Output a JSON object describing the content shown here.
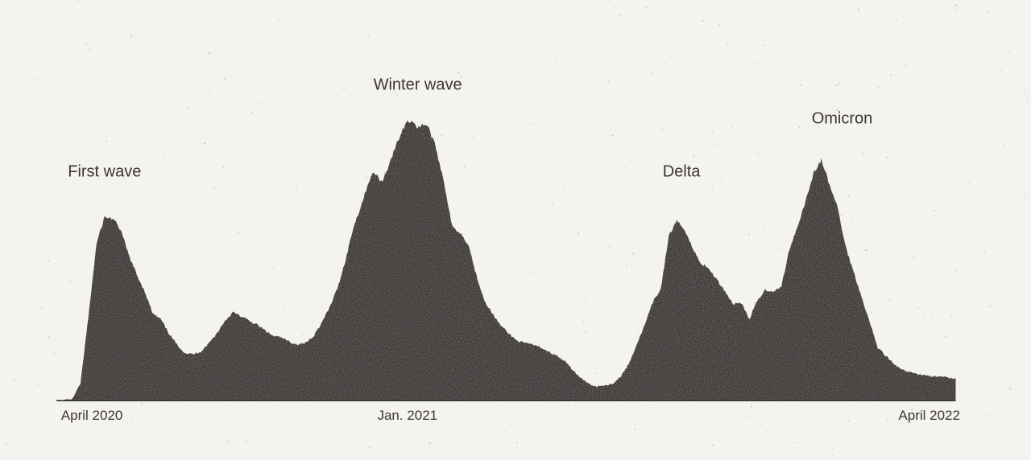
{
  "chart_data": {
    "type": "area",
    "x_start": "2020-03-01",
    "x_end": "2022-04-30",
    "y_range": [
      0,
      1000
    ],
    "grid": false,
    "legend": "none",
    "colors": {
      "area": "#2a2826",
      "background": "#f5f3ef",
      "text": "#3b3731"
    },
    "x_ticks": [
      {
        "date": "2020-04-01",
        "label": "April 2020",
        "anchor": "middle"
      },
      {
        "date": "2021-01-01",
        "label": "Jan. 2021",
        "anchor": "middle"
      },
      {
        "date": "2022-04-01",
        "label": "April 2022",
        "anchor": "middle"
      }
    ],
    "annotations": [
      {
        "date": "2020-04-12",
        "value": 800,
        "label": "First wave"
      },
      {
        "date": "2021-01-10",
        "value": 1110,
        "label": "Winter wave"
      },
      {
        "date": "2021-08-28",
        "value": 800,
        "label": "Delta"
      },
      {
        "date": "2022-01-15",
        "value": 990,
        "label": "Omicron"
      }
    ],
    "points": [
      [
        "2020-03-01",
        0
      ],
      [
        "2020-03-15",
        5
      ],
      [
        "2020-03-22",
        60
      ],
      [
        "2020-03-29",
        300
      ],
      [
        "2020-04-05",
        560
      ],
      [
        "2020-04-12",
        655
      ],
      [
        "2020-04-19",
        650
      ],
      [
        "2020-04-26",
        610
      ],
      [
        "2020-05-03",
        520
      ],
      [
        "2020-05-10",
        450
      ],
      [
        "2020-05-17",
        390
      ],
      [
        "2020-05-24",
        310
      ],
      [
        "2020-05-31",
        290
      ],
      [
        "2020-06-07",
        240
      ],
      [
        "2020-06-14",
        200
      ],
      [
        "2020-06-21",
        170
      ],
      [
        "2020-06-28",
        165
      ],
      [
        "2020-07-05",
        175
      ],
      [
        "2020-07-12",
        205
      ],
      [
        "2020-07-19",
        240
      ],
      [
        "2020-07-26",
        285
      ],
      [
        "2020-08-02",
        315
      ],
      [
        "2020-08-09",
        300
      ],
      [
        "2020-08-16",
        285
      ],
      [
        "2020-08-23",
        270
      ],
      [
        "2020-08-30",
        250
      ],
      [
        "2020-09-06",
        230
      ],
      [
        "2020-09-13",
        225
      ],
      [
        "2020-09-20",
        210
      ],
      [
        "2020-09-27",
        200
      ],
      [
        "2020-10-04",
        205
      ],
      [
        "2020-10-11",
        230
      ],
      [
        "2020-10-18",
        275
      ],
      [
        "2020-10-25",
        330
      ],
      [
        "2020-11-01",
        400
      ],
      [
        "2020-11-08",
        500
      ],
      [
        "2020-11-15",
        620
      ],
      [
        "2020-11-22",
        700
      ],
      [
        "2020-11-29",
        790
      ],
      [
        "2020-12-03",
        815
      ],
      [
        "2020-12-10",
        780
      ],
      [
        "2020-12-17",
        855
      ],
      [
        "2020-12-24",
        930
      ],
      [
        "2020-12-31",
        995
      ],
      [
        "2021-01-06",
        1000
      ],
      [
        "2021-01-10",
        970
      ],
      [
        "2021-01-14",
        990
      ],
      [
        "2021-01-19",
        980
      ],
      [
        "2021-01-26",
        900
      ],
      [
        "2021-02-02",
        780
      ],
      [
        "2021-02-09",
        620
      ],
      [
        "2021-02-16",
        600
      ],
      [
        "2021-02-23",
        560
      ],
      [
        "2021-03-02",
        450
      ],
      [
        "2021-03-09",
        360
      ],
      [
        "2021-03-16",
        310
      ],
      [
        "2021-03-23",
        270
      ],
      [
        "2021-03-30",
        240
      ],
      [
        "2021-04-06",
        215
      ],
      [
        "2021-04-13",
        205
      ],
      [
        "2021-04-20",
        200
      ],
      [
        "2021-04-27",
        190
      ],
      [
        "2021-05-04",
        175
      ],
      [
        "2021-05-11",
        160
      ],
      [
        "2021-05-18",
        140
      ],
      [
        "2021-05-25",
        110
      ],
      [
        "2021-06-01",
        80
      ],
      [
        "2021-06-08",
        60
      ],
      [
        "2021-06-15",
        50
      ],
      [
        "2021-06-22",
        55
      ],
      [
        "2021-06-29",
        60
      ],
      [
        "2021-07-06",
        85
      ],
      [
        "2021-07-13",
        130
      ],
      [
        "2021-07-20",
        200
      ],
      [
        "2021-07-27",
        270
      ],
      [
        "2021-08-03",
        350
      ],
      [
        "2021-08-10",
        400
      ],
      [
        "2021-08-17",
        590
      ],
      [
        "2021-08-24",
        640
      ],
      [
        "2021-08-31",
        610
      ],
      [
        "2021-09-07",
        540
      ],
      [
        "2021-09-14",
        490
      ],
      [
        "2021-09-21",
        470
      ],
      [
        "2021-09-28",
        430
      ],
      [
        "2021-10-05",
        390
      ],
      [
        "2021-10-12",
        345
      ],
      [
        "2021-10-19",
        350
      ],
      [
        "2021-10-26",
        290
      ],
      [
        "2021-11-02",
        355
      ],
      [
        "2021-11-09",
        395
      ],
      [
        "2021-11-16",
        390
      ],
      [
        "2021-11-23",
        405
      ],
      [
        "2021-11-30",
        540
      ],
      [
        "2021-12-07",
        620
      ],
      [
        "2021-12-14",
        710
      ],
      [
        "2021-12-21",
        810
      ],
      [
        "2021-12-28",
        860
      ],
      [
        "2022-01-04",
        770
      ],
      [
        "2022-01-11",
        690
      ],
      [
        "2022-01-18",
        550
      ],
      [
        "2022-01-25",
        460
      ],
      [
        "2022-02-01",
        370
      ],
      [
        "2022-02-08",
        280
      ],
      [
        "2022-02-15",
        190
      ],
      [
        "2022-02-22",
        160
      ],
      [
        "2022-03-01",
        130
      ],
      [
        "2022-03-08",
        110
      ],
      [
        "2022-03-15",
        100
      ],
      [
        "2022-03-22",
        95
      ],
      [
        "2022-03-29",
        90
      ],
      [
        "2022-04-05",
        85
      ],
      [
        "2022-04-12",
        85
      ],
      [
        "2022-04-19",
        80
      ],
      [
        "2022-04-24",
        80
      ]
    ]
  }
}
